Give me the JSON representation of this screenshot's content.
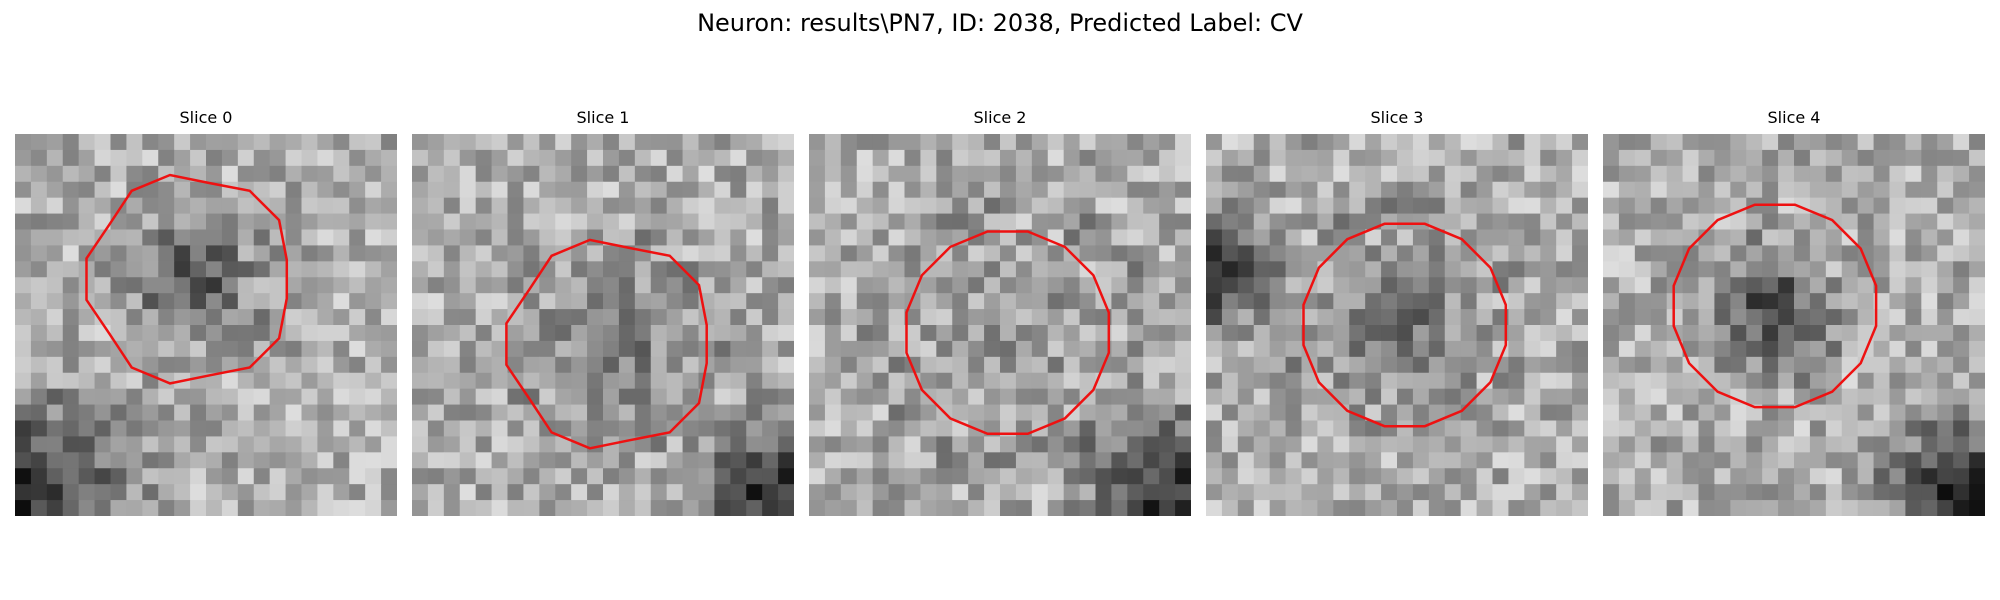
{
  "figure": {
    "title": "Neuron: results\\PN7, ID: 2038, Predicted Label: CV"
  },
  "contour_color": "#ee1111",
  "panels": [
    {
      "title": "Slice 0",
      "contour": "irregular-octagon",
      "seed": 11,
      "blob": [
        0.46,
        0.38,
        0.22,
        0.45
      ],
      "dark_corner": "bottom-left"
    },
    {
      "title": "Slice 1",
      "contour": "irregular-octagon",
      "seed": 23,
      "blob": [
        0.52,
        0.55,
        0.26,
        0.25
      ],
      "dark_corner": "bottom-right"
    },
    {
      "title": "Slice 2",
      "contour": "octagon",
      "seed": 37,
      "blob": [
        0.52,
        0.52,
        0.32,
        0.12
      ],
      "dark_corner": "bottom-right"
    },
    {
      "title": "Slice 3",
      "contour": "octagon",
      "seed": 41,
      "blob": [
        0.52,
        0.5,
        0.28,
        0.3
      ],
      "dark_corner": "left"
    },
    {
      "title": "Slice 4",
      "contour": "octagon",
      "seed": 53,
      "blob": [
        0.45,
        0.45,
        0.2,
        0.5
      ],
      "dark_corner": "bottom-right"
    }
  ]
}
